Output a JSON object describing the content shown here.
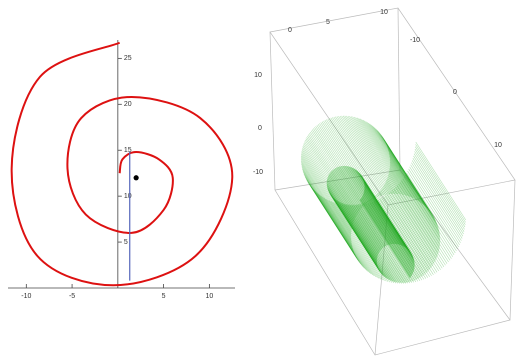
{
  "chart_data": [
    {
      "type": "line",
      "xlim": [
        -12,
        12.8
      ],
      "ylim": [
        0,
        27
      ],
      "xticks": [
        -10,
        -5,
        5,
        10
      ],
      "yticks": [
        5,
        10,
        15,
        20,
        25
      ],
      "series": [
        {
          "color": "#dd1111",
          "x": [
            0.2,
            -8.5,
            -11.6,
            -8.8,
            -0.5,
            8.5,
            12.5,
            9,
            1.5,
            -4,
            -5.5,
            -3.5,
            1.5,
            5,
            6,
            4.5,
            2,
            0.5,
            0.2
          ],
          "values": [
            26.7,
            23,
            13,
            3.5,
            0.3,
            3.5,
            12,
            18.5,
            20.8,
            18.5,
            13,
            8,
            6,
            8.5,
            12,
            14,
            14.8,
            14,
            12.5
          ]
        },
        {
          "color": "#5566bb",
          "x": [
            1.3,
            1.3
          ],
          "values": [
            0.8,
            14.8
          ]
        }
      ],
      "points": [
        {
          "x": 2,
          "y": 12,
          "color": "#000000"
        }
      ]
    },
    {
      "type": "surface3d",
      "color": "#22aa22",
      "xticks": [
        0,
        5,
        10
      ],
      "yticks": [
        -10,
        0,
        10
      ],
      "zticks": [
        10,
        0,
        -10
      ]
    }
  ]
}
